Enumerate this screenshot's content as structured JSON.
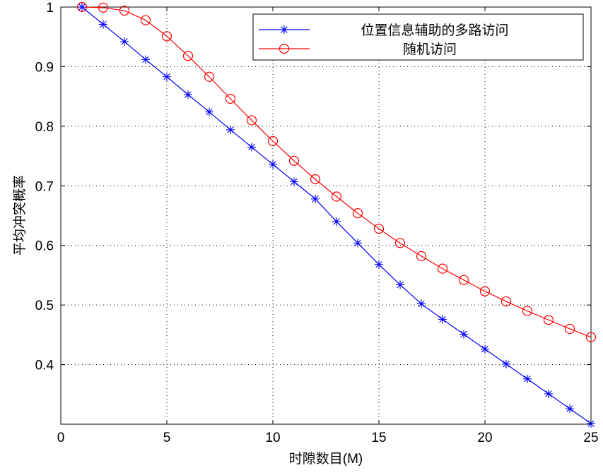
{
  "chart_data": {
    "type": "line",
    "title": "",
    "xlabel": "时隙数目(M)",
    "ylabel": "平均冲突概率",
    "xlim": [
      0,
      25
    ],
    "ylim": [
      0.3,
      1.0
    ],
    "xticks": [
      0,
      5,
      10,
      15,
      20,
      25
    ],
    "yticks": [
      0.4,
      0.5,
      0.6,
      0.7,
      0.8,
      0.9,
      1.0
    ],
    "ytick_labels": [
      "0.4",
      "0.5",
      "0.6",
      "0.7",
      "0.8",
      "0.9",
      "1"
    ],
    "grid": true,
    "legend_position": "top-right",
    "x": [
      1,
      2,
      3,
      4,
      5,
      6,
      7,
      8,
      9,
      10,
      11,
      12,
      13,
      14,
      15,
      16,
      17,
      18,
      19,
      20,
      21,
      22,
      23,
      24,
      25
    ],
    "series": [
      {
        "name": "位置信息辅助的多路访问",
        "color": "#0000ff",
        "marker": "asterisk",
        "values": [
          1.0,
          0.971,
          0.942,
          0.912,
          0.883,
          0.853,
          0.824,
          0.794,
          0.765,
          0.736,
          0.707,
          0.678,
          0.64,
          0.604,
          0.568,
          0.534,
          0.502,
          0.476,
          0.451,
          0.426,
          0.401,
          0.376,
          0.351,
          0.326,
          0.301
        ]
      },
      {
        "name": "随机访问",
        "color": "#ff0000",
        "marker": "circle",
        "values": [
          1.0,
          0.999,
          0.994,
          0.978,
          0.951,
          0.918,
          0.883,
          0.846,
          0.81,
          0.775,
          0.742,
          0.711,
          0.682,
          0.654,
          0.628,
          0.604,
          0.582,
          0.561,
          0.542,
          0.523,
          0.506,
          0.49,
          0.475,
          0.46,
          0.446
        ]
      }
    ]
  }
}
